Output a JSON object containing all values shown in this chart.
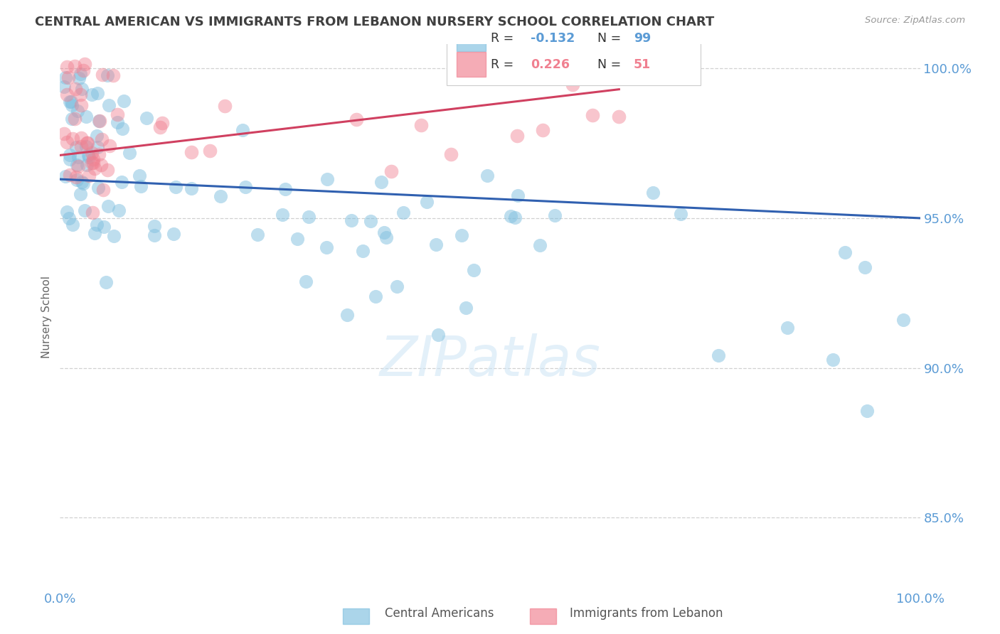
{
  "title": "CENTRAL AMERICAN VS IMMIGRANTS FROM LEBANON NURSERY SCHOOL CORRELATION CHART",
  "source": "Source: ZipAtlas.com",
  "ylabel": "Nursery School",
  "xlim": [
    0,
    1.0
  ],
  "ylim": [
    0.826,
    1.008
  ],
  "yticks": [
    0.85,
    0.9,
    0.95,
    1.0
  ],
  "ytick_labels": [
    "85.0%",
    "90.0%",
    "95.0%",
    "100.0%"
  ],
  "blue_R": -0.132,
  "blue_N": 99,
  "pink_R": 0.226,
  "pink_N": 51,
  "blue_color": "#7fbfdf",
  "pink_color": "#f08090",
  "blue_line_color": "#3060b0",
  "pink_line_color": "#d04060",
  "bg_color": "#ffffff",
  "grid_color": "#aaaaaa",
  "tick_color": "#5b9bd5",
  "title_color": "#404040",
  "watermark": "ZIPatlas",
  "blue_line_x0": 0.0,
  "blue_line_y0": 0.963,
  "blue_line_x1": 1.0,
  "blue_line_y1": 0.95,
  "pink_line_x0": 0.0,
  "pink_line_y0": 0.971,
  "pink_line_x1": 0.65,
  "pink_line_y1": 0.993
}
